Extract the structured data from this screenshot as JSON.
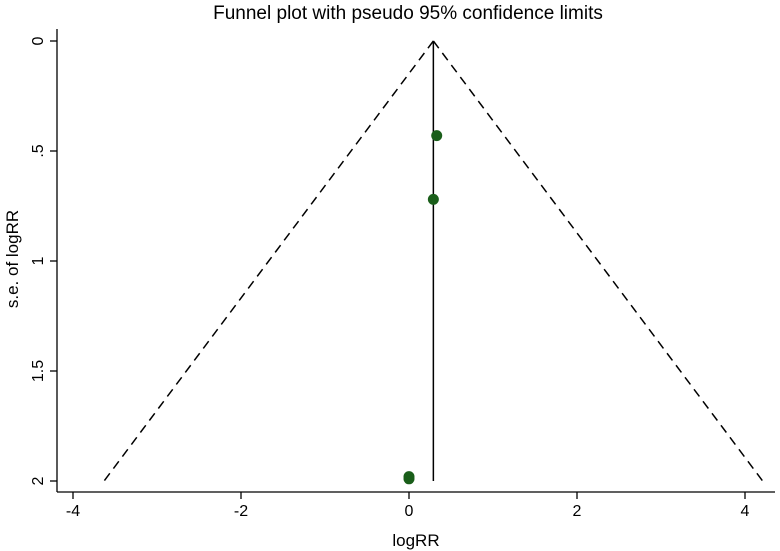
{
  "chart_data": {
    "type": "scatter",
    "title": "Funnel plot with pseudo 95% confidence limits",
    "xlabel": "logRR",
    "ylabel": "s.e. of logRR",
    "xlim": [
      -4.4,
      4.4
    ],
    "ylim": [
      0,
      2
    ],
    "y_reversed": true,
    "xticks": [
      -4,
      -2,
      0,
      2,
      4
    ],
    "yticks": [
      0,
      0.5,
      1,
      1.5,
      2
    ],
    "xtick_labels": [
      "-4",
      "-2",
      "0",
      "2",
      "4"
    ],
    "ytick_labels": [
      "0",
      ".5",
      "1",
      "1.5",
      "2"
    ],
    "grid": false,
    "pooled_estimate": 0.29,
    "funnel_lines": [
      {
        "style": "dashed",
        "from": [
          0.29,
          0
        ],
        "to": [
          -3.63,
          2
        ]
      },
      {
        "style": "dashed",
        "from": [
          0.29,
          0
        ],
        "to": [
          4.21,
          2
        ]
      },
      {
        "style": "solid",
        "from": [
          0.29,
          0
        ],
        "to": [
          0.29,
          2
        ]
      }
    ],
    "points": [
      {
        "x": 0.33,
        "y": 0.43
      },
      {
        "x": 0.29,
        "y": 0.72
      },
      {
        "x": 0.0,
        "y": 1.98
      },
      {
        "x": 0.0,
        "y": 1.99
      }
    ],
    "point_color": "#1a5e1a",
    "line_color": "#000000"
  }
}
